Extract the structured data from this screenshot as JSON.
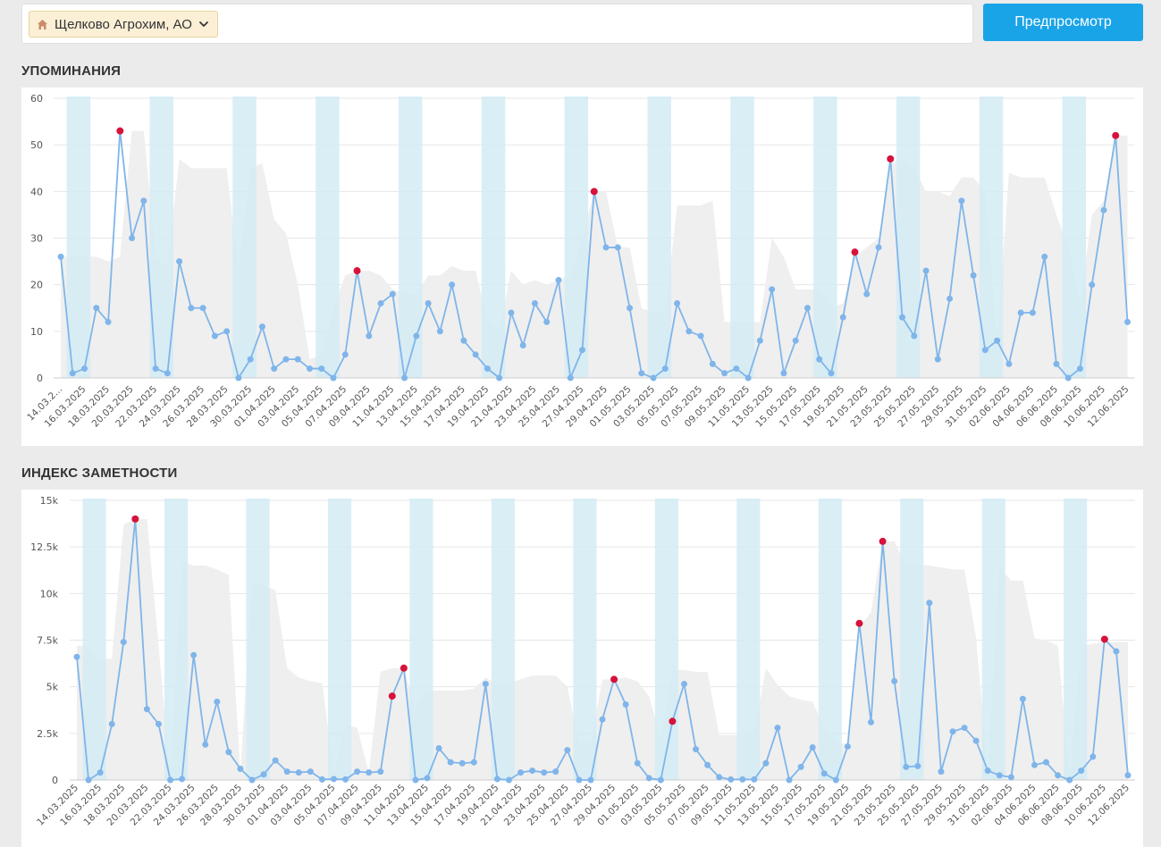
{
  "toolbar": {
    "company_label": "Щелково Агрохим, АО",
    "company_icon": "home-icon",
    "dropdown_icon": "chevron-down-icon",
    "preview_label": "Предпросмотр"
  },
  "colors": {
    "line": "#7fb5ea",
    "peak": "#d7123b",
    "weekend_band": "#d4ebf5",
    "background_area": "#efefef",
    "preview_button": "#1aa4e8"
  },
  "chart_data": [
    {
      "type": "line",
      "title": "УПОМИНАНИЯ",
      "y_tick_labels": [
        "0",
        "10",
        "20",
        "30",
        "40",
        "50",
        "60"
      ],
      "ylim": [
        0,
        60
      ],
      "x_tick_labels": [
        "14.03.2...",
        "16.03.2025",
        "18.03.2025",
        "20.03.2025",
        "22.03.2025",
        "24.03.2025",
        "26.03.2025",
        "28.03.2025",
        "30.03.2025",
        "01.04.2025",
        "03.04.2025",
        "05.04.2025",
        "07.04.2025",
        "09.04.2025",
        "11.04.2025",
        "13.04.2025",
        "15.04.2025",
        "17.04.2025",
        "19.04.2025",
        "21.04.2025",
        "23.04.2025",
        "25.04.2025",
        "27.04.2025",
        "29.04.2025",
        "01.05.2025",
        "03.05.2025",
        "05.05.2025",
        "07.05.2025",
        "09.05.2025",
        "11.05.2025",
        "13.05.2025",
        "15.05.2025",
        "17.05.2025",
        "19.05.2025",
        "21.05.2025",
        "23.05.2025",
        "25.05.2025",
        "27.05.2025",
        "29.05.2025",
        "31.05.2025",
        "02.06.2025",
        "04.06.2025",
        "06.06.2025",
        "08.06.2025",
        "10.06.2025",
        "12.06.2025"
      ],
      "grid": true,
      "weekend_band_start_indices": [
        1,
        8,
        15,
        22,
        29,
        36,
        43,
        50,
        57,
        64,
        71,
        78,
        85
      ],
      "values": [
        26,
        1,
        2,
        15,
        12,
        53,
        30,
        38,
        2,
        1,
        25,
        15,
        15,
        9,
        10,
        0,
        4,
        11,
        2,
        4,
        4,
        2,
        2,
        0,
        5,
        23,
        9,
        16,
        18,
        0,
        9,
        16,
        10,
        20,
        8,
        5,
        2,
        0,
        14,
        7,
        16,
        12,
        21,
        0,
        6,
        40,
        28,
        28,
        15,
        1,
        0,
        2,
        16,
        10,
        9,
        3,
        1,
        2,
        0,
        8,
        19,
        1,
        8,
        15,
        4,
        1,
        13,
        27,
        18,
        28,
        47,
        13,
        9,
        23,
        4,
        17,
        38,
        22,
        6,
        8,
        3,
        14,
        14,
        26,
        3,
        0,
        2,
        20,
        36,
        52,
        12
      ],
      "peak_indices": [
        5,
        25,
        45,
        67,
        70,
        89
      ],
      "background_area": [
        26,
        26,
        26,
        26,
        25,
        26,
        53,
        53,
        26,
        24,
        47,
        45,
        45,
        45,
        45,
        23,
        45,
        46,
        34,
        31,
        20,
        4,
        5,
        15,
        22,
        23,
        23,
        22,
        19,
        18,
        18,
        22,
        22,
        24,
        23,
        23,
        12,
        10,
        23,
        20,
        21,
        20,
        21,
        22,
        30,
        40,
        40,
        28,
        28,
        15,
        14,
        14,
        37,
        37,
        37,
        38,
        12,
        12,
        12,
        12,
        30,
        26,
        19,
        19,
        19,
        15,
        16,
        26,
        28,
        30,
        46,
        47,
        45,
        40,
        40,
        39,
        43,
        43,
        40,
        8,
        44,
        43,
        43,
        43,
        35,
        28,
        16,
        35,
        38,
        52,
        52
      ]
    },
    {
      "type": "line",
      "title": "ИНДЕКС ЗАМЕТНОСТИ",
      "y_tick_labels": [
        "0",
        "2.5k",
        "5k",
        "7.5k",
        "10k",
        "12.5k",
        "15k"
      ],
      "ylim": [
        0,
        15000
      ],
      "x_tick_labels": [
        "14.03.2025",
        "16.03.2025",
        "18.03.2025",
        "20.03.2025",
        "22.03.2025",
        "24.03.2025",
        "26.03.2025",
        "28.03.2025",
        "30.03.2025",
        "01.04.2025",
        "03.04.2025",
        "05.04.2025",
        "07.04.2025",
        "09.04.2025",
        "11.04.2025",
        "13.04.2025",
        "15.04.2025",
        "17.04.2025",
        "19.04.2025",
        "21.04.2025",
        "23.04.2025",
        "25.04.2025",
        "27.04.2025",
        "29.04.2025",
        "01.05.2025",
        "03.05.2025",
        "05.05.2025",
        "07.05.2025",
        "09.05.2025",
        "11.05.2025",
        "13.05.2025",
        "15.05.2025",
        "17.05.2025",
        "19.05.2025",
        "21.05.2025",
        "23.05.2025",
        "25.05.2025",
        "27.05.2025",
        "29.05.2025",
        "31.05.2025",
        "02.06.2025",
        "04.06.2025",
        "06.06.2025",
        "08.06.2025",
        "10.06.2025",
        "12.06.2025"
      ],
      "grid": true,
      "weekend_band_start_indices": [
        1,
        8,
        15,
        22,
        29,
        36,
        43,
        50,
        57,
        64,
        71,
        78,
        85
      ],
      "values": [
        6600,
        0,
        400,
        3000,
        7400,
        14000,
        3800,
        3000,
        0,
        50,
        6700,
        1900,
        4200,
        1500,
        600,
        0,
        300,
        1050,
        450,
        400,
        450,
        30,
        50,
        30,
        450,
        400,
        450,
        4500,
        6000,
        0,
        100,
        1700,
        950,
        900,
        950,
        5150,
        50,
        0,
        400,
        500,
        400,
        450,
        1600,
        0,
        0,
        3250,
        5400,
        4050,
        900,
        100,
        0,
        3150,
        5150,
        1650,
        800,
        150,
        30,
        30,
        30,
        900,
        2800,
        0,
        700,
        1750,
        350,
        0,
        1800,
        8400,
        3100,
        12800,
        5300,
        700,
        750,
        9500,
        450,
        2600,
        2800,
        2100,
        500,
        250,
        150,
        4350,
        800,
        950,
        250,
        0,
        500,
        1250,
        7550,
        6900,
        250
      ],
      "peak_indices": [
        5,
        27,
        28,
        46,
        51,
        67,
        69,
        88
      ],
      "background_area": [
        7200,
        7200,
        6500,
        6500,
        13700,
        14000,
        14000,
        7200,
        200,
        11700,
        11500,
        11500,
        11300,
        11000,
        400,
        10600,
        10400,
        10200,
        6000,
        5500,
        5300,
        5200,
        400,
        3000,
        2800,
        400,
        5800,
        6000,
        6000,
        3800,
        4800,
        4800,
        4800,
        4800,
        4900,
        5500,
        5100,
        5200,
        5400,
        5600,
        5600,
        5600,
        5000,
        2000,
        2000,
        5400,
        5400,
        5500,
        5300,
        4500,
        2200,
        5900,
        5900,
        5800,
        5800,
        2400,
        2400,
        2400,
        2500,
        6000,
        5100,
        4500,
        4300,
        4200,
        2800,
        2200,
        1800,
        8200,
        9000,
        12800,
        12800,
        11500,
        11500,
        11500,
        11400,
        11300,
        11300,
        7600,
        400,
        11400,
        10700,
        10700,
        7600,
        7500,
        7200,
        200,
        7200,
        7300,
        7400,
        7400,
        7400
      ]
    }
  ]
}
